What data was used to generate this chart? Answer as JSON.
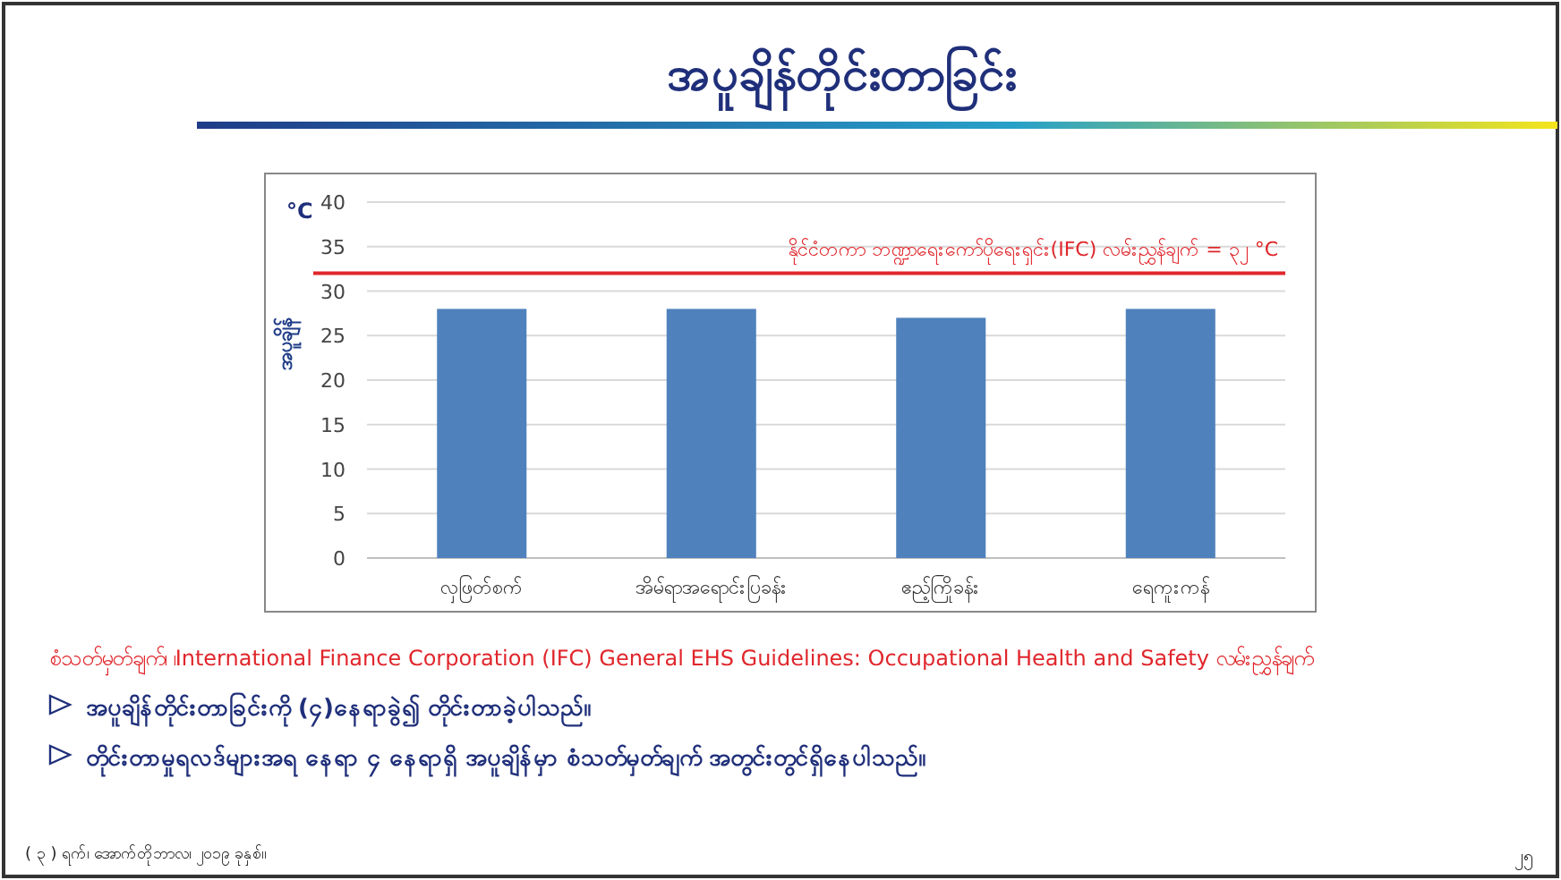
{
  "chart_data": {
    "type": "bar",
    "title": "အပူချိန်တိုင်းတာခြင်း",
    "ylabel": "အပူချိန်",
    "categories": [
      "လှဖြတ်စက်",
      "အိမ်ရာအရောင်းပြခန်း",
      "ဧည့်ကြိုခန်း",
      "ရေကူးကန်"
    ],
    "values": [
      28,
      28,
      27,
      28
    ],
    "color": "#4f81bd",
    "ylim": [
      0,
      40
    ],
    "yticks": [
      0,
      5,
      10,
      15,
      20,
      25,
      30,
      35,
      40
    ],
    "grid": "y",
    "ref_lines": [
      {
        "axis": "y",
        "value": 32,
        "label": "နိုင်ငံတကာ ဘဏ္ဍာရေးကော်ပိုရေးရှင်း(IFC) လမ်းညွှန်ချက် = ၃၂ °C",
        "color": "#e0262b"
      }
    ],
    "annotations": [
      "°C",
      "စံသတ်မှတ်ချက်၊ ၊International Finance Corporation (IFC) General EHS Guidelines: Occupational Health and Safety လမ်းညွှန်ချက်",
      "အပူချိန်တိုင်းတာခြင်းကို (၄)နေရာခွဲ၍ တိုင်းတာခဲ့ပါသည်။",
      "တိုင်းတာမှုရလဒ်များအရ နေရာ ၄ နေရာရှိ အပူချိန်မှာ စံသတ်မှတ်ချက် အတွင်းတွင်ရှိနေပါသည်။",
      "( ၃ ) ရက်၊ အောက်တိုဘာလ၊ ၂၀၁၉ ခုနှစ်။",
      "၂၅"
    ]
  }
}
